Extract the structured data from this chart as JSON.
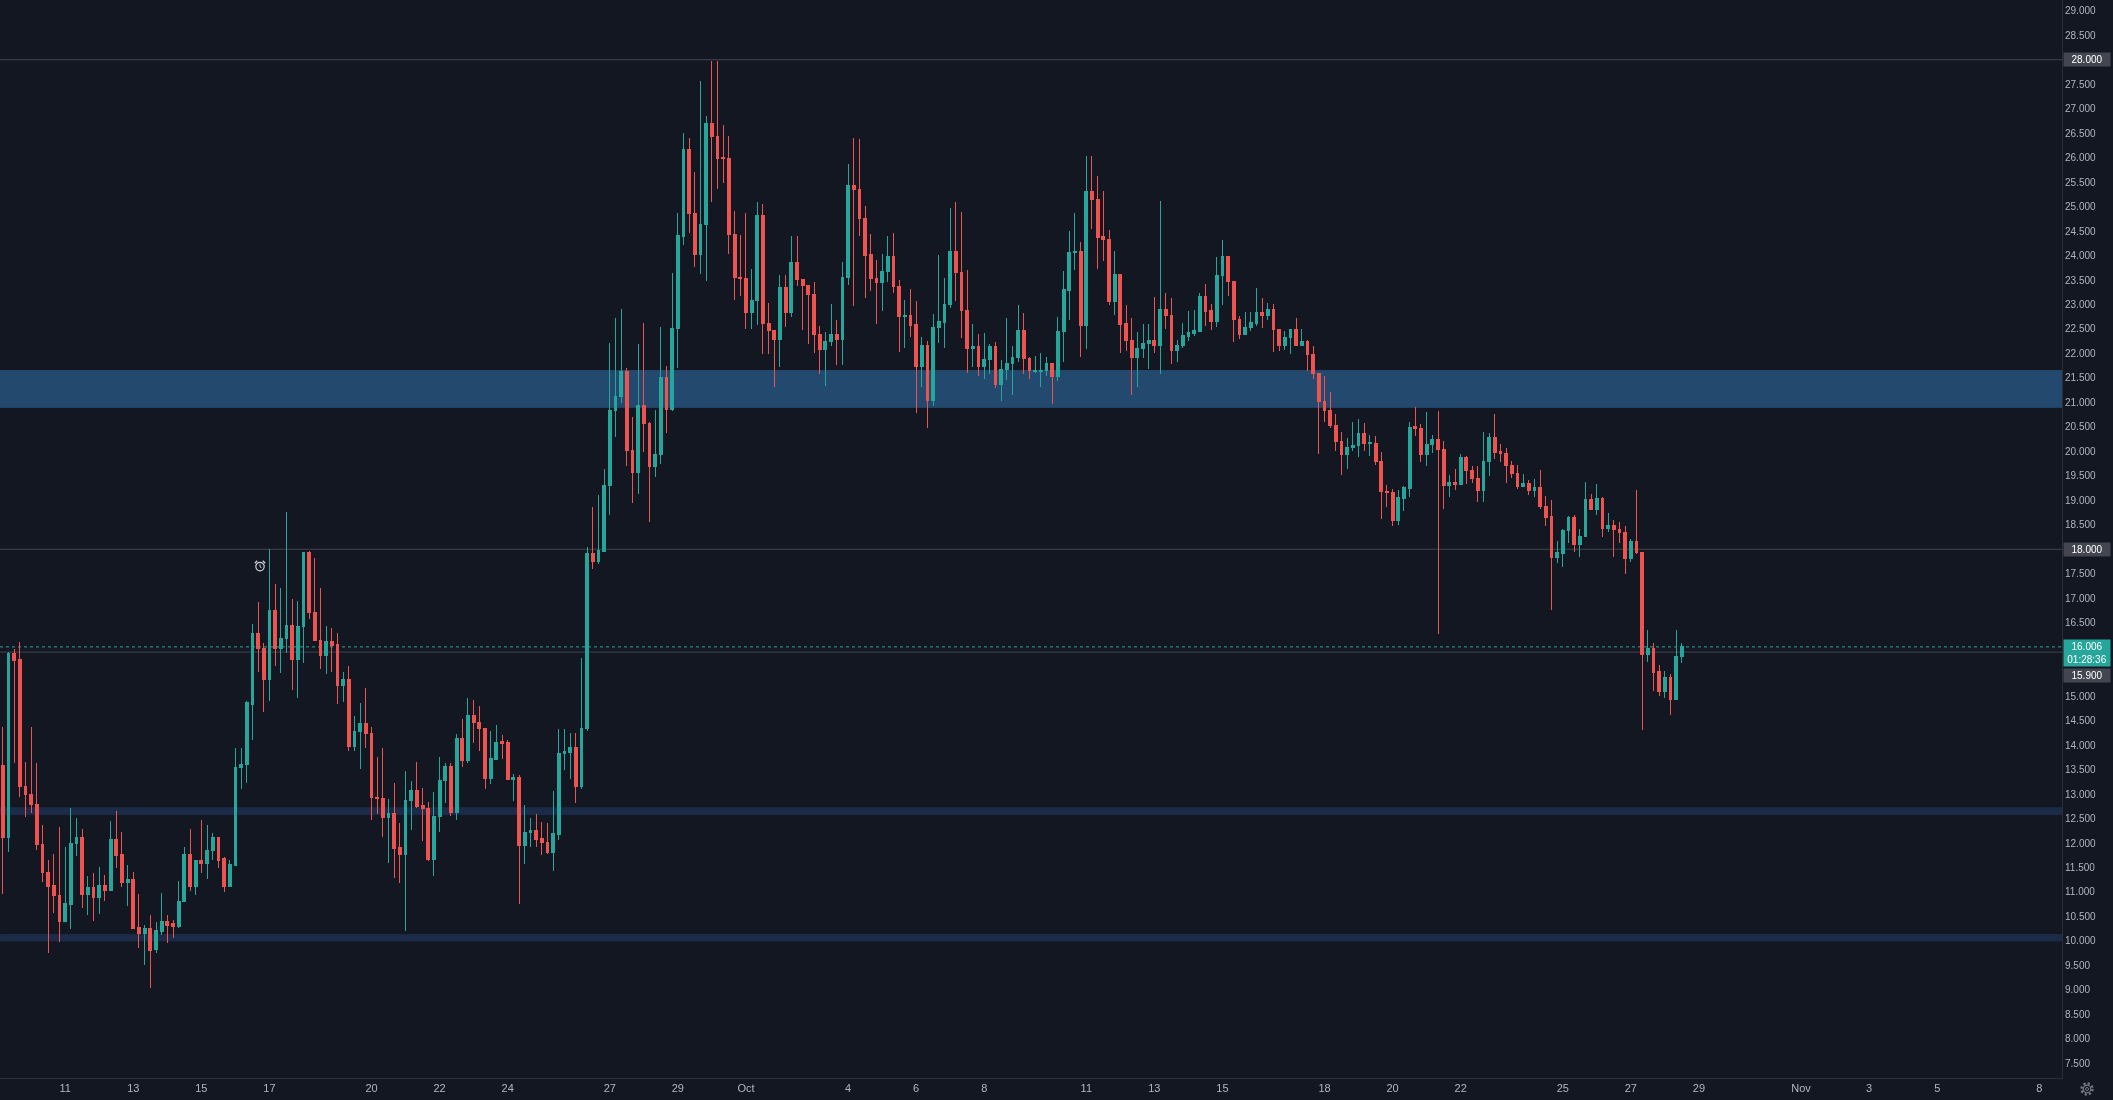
{
  "chart_data": {
    "type": "candlestick",
    "x": [
      "--09-09T04:00",
      "--09-09T08:00",
      "--09-09T12:00",
      "--09-09T16:00",
      "--09-09T20:00",
      "--09-10T00:00",
      "--09-10T04:00",
      "--09-10T08:00",
      "--09-10T12:00",
      "--09-10T16:00",
      "--09-10T20:00",
      "--09-11T00:00",
      "--09-11T04:00",
      "--09-11T08:00",
      "--09-11T12:00",
      "--09-11T16:00",
      "--09-11T20:00",
      "--09-12T00:00",
      "--09-12T04:00",
      "--09-12T08:00",
      "--09-12T12:00",
      "--09-12T16:00",
      "--09-12T20:00",
      "--09-13T00:00",
      "--09-13T04:00",
      "--09-13T08:00",
      "--09-13T12:00",
      "--09-13T16:00",
      "--09-13T20:00",
      "--09-14T00:00",
      "--09-14T04:00",
      "--09-14T08:00",
      "--09-14T12:00",
      "--09-14T16:00",
      "--09-14T20:00",
      "--09-15T00:00",
      "--09-15T04:00",
      "--09-15T08:00",
      "--09-15T12:00",
      "--09-15T16:00",
      "--09-15T20:00",
      "--09-16T00:00",
      "--09-16T04:00",
      "--09-16T08:00",
      "--09-16T12:00",
      "--09-16T16:00",
      "--09-16T20:00",
      "--09-17T00:00",
      "--09-17T04:00",
      "--09-17T08:00",
      "--09-17T12:00",
      "--09-17T16:00",
      "--09-17T20:00",
      "--09-18T00:00",
      "--09-18T04:00",
      "--09-18T08:00",
      "--09-18T12:00",
      "--09-18T16:00",
      "--09-18T20:00",
      "--09-19T00:00",
      "--09-19T04:00",
      "--09-19T08:00",
      "--09-19T12:00",
      "--09-19T16:00",
      "--09-19T20:00",
      "--09-20T00:00",
      "--09-20T04:00",
      "--09-20T08:00",
      "--09-20T12:00",
      "--09-20T16:00",
      "--09-20T20:00",
      "--09-21T00:00",
      "--09-21T04:00",
      "--09-21T08:00",
      "--09-21T12:00",
      "--09-21T16:00",
      "--09-21T20:00",
      "--09-22T00:00",
      "--09-22T04:00",
      "--09-22T08:00",
      "--09-22T12:00",
      "--09-22T16:00",
      "--09-22T20:00",
      "--09-23T00:00",
      "--09-23T04:00",
      "--09-23T08:00",
      "--09-23T12:00",
      "--09-23T16:00",
      "--09-23T20:00",
      "--09-24T00:00",
      "--09-24T04:00",
      "--09-24T08:00",
      "--09-24T12:00",
      "--09-24T16:00",
      "--09-24T20:00",
      "--09-25T00:00",
      "--09-25T04:00",
      "--09-25T08:00",
      "--09-25T12:00",
      "--09-25T16:00",
      "--09-25T20:00",
      "--09-26T00:00",
      "--09-26T04:00",
      "--09-26T08:00",
      "--09-26T12:00",
      "--09-26T16:00",
      "--09-26T20:00",
      "--09-27T00:00",
      "--09-27T04:00",
      "--09-27T08:00",
      "--09-27T12:00",
      "--09-27T16:00",
      "--09-27T20:00",
      "--09-28T00:00",
      "--09-28T04:00",
      "--09-28T08:00",
      "--09-28T12:00",
      "--09-28T16:00",
      "--09-28T20:00",
      "--09-29T00:00",
      "--09-29T04:00",
      "--09-29T08:00",
      "--09-29T12:00",
      "--09-29T16:00",
      "--09-29T20:00",
      "--09-30T00:00",
      "--09-30T04:00",
      "--09-30T08:00",
      "--09-30T12:00",
      "--09-30T16:00",
      "--09-30T20:00",
      "--10-01T00:00",
      "--10-01T04:00",
      "--10-01T08:00",
      "--10-01T12:00",
      "--10-01T16:00",
      "--10-01T20:00",
      "--10-02T00:00",
      "--10-02T04:00",
      "--10-02T08:00",
      "--10-02T12:00",
      "--10-02T16:00",
      "--10-02T20:00",
      "--10-03T00:00",
      "--10-03T04:00",
      "--10-03T08:00",
      "--10-03T12:00",
      "--10-03T16:00",
      "--10-03T20:00",
      "--10-04T00:00",
      "--10-04T04:00",
      "--10-04T08:00",
      "--10-04T12:00",
      "--10-04T16:00",
      "--10-04T20:00",
      "--10-05T00:00",
      "--10-05T04:00",
      "--10-05T08:00",
      "--10-05T12:00",
      "--10-05T16:00",
      "--10-05T20:00",
      "--10-06T00:00",
      "--10-06T04:00",
      "--10-06T08:00",
      "--10-06T12:00",
      "--10-06T16:00",
      "--10-06T20:00",
      "--10-07T00:00",
      "--10-07T04:00",
      "--10-07T08:00",
      "--10-07T12:00",
      "--10-07T16:00",
      "--10-07T20:00",
      "--10-08T00:00",
      "--10-08T04:00",
      "--10-08T08:00",
      "--10-08T12:00",
      "--10-08T16:00",
      "--10-08T20:00",
      "--10-09T00:00",
      "--10-09T04:00",
      "--10-09T08:00",
      "--10-09T12:00",
      "--10-09T16:00",
      "--10-09T20:00",
      "--10-10T00:00",
      "--10-10T04:00",
      "--10-10T08:00",
      "--10-10T12:00",
      "--10-10T16:00",
      "--10-10T20:00",
      "--10-11T00:00",
      "--10-11T04:00",
      "--10-11T08:00",
      "--10-11T12:00",
      "--10-11T16:00",
      "--10-11T20:00",
      "--10-12T00:00",
      "--10-12T04:00",
      "--10-12T08:00",
      "--10-12T12:00",
      "--10-12T16:00",
      "--10-12T20:00",
      "--10-13T00:00",
      "--10-13T04:00",
      "--10-13T08:00",
      "--10-13T12:00",
      "--10-13T16:00",
      "--10-13T20:00",
      "--10-14T00:00",
      "--10-14T04:00",
      "--10-14T08:00",
      "--10-14T12:00",
      "--10-14T16:00",
      "--10-14T20:00",
      "--10-15T00:00",
      "--10-15T04:00",
      "--10-15T08:00",
      "--10-15T12:00",
      "--10-15T16:00",
      "--10-15T20:00",
      "--10-16T00:00",
      "--10-16T04:00",
      "--10-16T08:00",
      "--10-16T12:00",
      "--10-16T16:00",
      "--10-16T20:00",
      "--10-17T00:00",
      "--10-17T04:00",
      "--10-17T08:00",
      "--10-17T12:00",
      "--10-17T16:00",
      "--10-17T20:00",
      "--10-18T00:00",
      "--10-18T04:00",
      "--10-18T08:00",
      "--10-18T12:00",
      "--10-18T16:00",
      "--10-18T20:00",
      "--10-19T00:00",
      "--10-19T04:00",
      "--10-19T08:00",
      "--10-19T12:00",
      "--10-19T16:00",
      "--10-19T20:00",
      "--10-20T00:00",
      "--10-20T04:00",
      "--10-20T08:00",
      "--10-20T12:00",
      "--10-20T16:00",
      "--10-20T20:00",
      "--10-21T00:00",
      "--10-21T04:00",
      "--10-21T08:00",
      "--10-21T12:00",
      "--10-21T16:00",
      "--10-21T20:00",
      "--10-22T00:00",
      "--10-22T04:00",
      "--10-22T08:00",
      "--10-22T12:00",
      "--10-22T16:00",
      "--10-22T20:00",
      "--10-23T00:00",
      "--10-23T04:00",
      "--10-23T08:00",
      "--10-23T12:00",
      "--10-23T16:00",
      "--10-23T20:00",
      "--10-24T00:00",
      "--10-24T04:00",
      "--10-24T08:00",
      "--10-24T12:00",
      "--10-24T16:00",
      "--10-24T20:00",
      "--10-25T00:00",
      "--10-25T04:00",
      "--10-25T08:00",
      "--10-25T12:00",
      "--10-25T16:00",
      "--10-25T20:00",
      "--10-26T00:00",
      "--10-26T04:00",
      "--10-26T08:00",
      "--10-26T12:00",
      "--10-26T16:00",
      "--10-26T20:00",
      "--10-27T00:00",
      "--10-27T04:00",
      "--10-27T08:00",
      "--10-27T12:00",
      "--10-27T16:00",
      "--10-27T20:00",
      "--10-28T00:00",
      "--10-28T04:00",
      "--10-28T08:00",
      "--10-28T12:00"
    ],
    "ohlc": [
      [
        13.58,
        14.38,
        10.95,
        12.11
      ],
      [
        12.11,
        15.9,
        11.81,
        15.87
      ],
      [
        15.87,
        15.96,
        13.63,
        15.72
      ],
      [
        15.74,
        16.1,
        12.95,
        13.15
      ],
      [
        13.15,
        13.65,
        12.54,
        12.99
      ],
      [
        12.99,
        14.38,
        12.62,
        12.79
      ],
      [
        12.79,
        13.63,
        11.86,
        11.96
      ],
      [
        11.97,
        12.36,
        11.21,
        11.39
      ],
      [
        11.39,
        11.65,
        9.76,
        11.12
      ],
      [
        11.13,
        11.77,
        10.58,
        10.92
      ],
      [
        10.92,
        12.32,
        9.98,
        10.39
      ],
      [
        10.39,
        11.92,
        10.39,
        10.77
      ],
      [
        10.75,
        12.71,
        10.25,
        11.99
      ],
      [
        11.98,
        12.51,
        11.73,
        12.12
      ],
      [
        12.12,
        12.29,
        10.68,
        10.95
      ],
      [
        10.95,
        11.32,
        10.53,
        11.09
      ],
      [
        11.09,
        11.38,
        10.41,
        10.88
      ],
      [
        10.88,
        11.5,
        10.56,
        11.13
      ],
      [
        11.13,
        11.34,
        10.82,
        11.04
      ],
      [
        11.04,
        12.45,
        11.04,
        12.07
      ],
      [
        12.07,
        12.65,
        11.49,
        11.75
      ],
      [
        11.77,
        12.22,
        11.11,
        11.19
      ],
      [
        11.19,
        11.55,
        10.72,
        11.26
      ],
      [
        11.26,
        11.41,
        10.26,
        10.26
      ],
      [
        10.28,
        10.95,
        9.86,
        10.15
      ],
      [
        10.15,
        10.32,
        9.51,
        10.26
      ],
      [
        10.26,
        10.53,
        9.03,
        9.81
      ],
      [
        9.83,
        10.39,
        9.75,
        10.22
      ],
      [
        10.2,
        10.97,
        10.12,
        10.4
      ],
      [
        10.4,
        10.53,
        9.96,
        10.32
      ],
      [
        10.36,
        10.43,
        10.07,
        10.29
      ],
      [
        10.3,
        11.22,
        10.26,
        10.81
      ],
      [
        10.8,
        11.92,
        10.8,
        11.77
      ],
      [
        11.77,
        12.28,
        11.02,
        11.12
      ],
      [
        11.12,
        11.65,
        10.94,
        11.65
      ],
      [
        11.65,
        12.47,
        11.39,
        11.58
      ],
      [
        11.58,
        12.37,
        11.26,
        11.84
      ],
      [
        11.84,
        12.2,
        11.65,
        12.12
      ],
      [
        12.11,
        12.12,
        11.49,
        11.65
      ],
      [
        11.68,
        11.72,
        11.0,
        11.12
      ],
      [
        11.12,
        11.65,
        11.11,
        11.57
      ],
      [
        11.55,
        13.95,
        11.55,
        13.54
      ],
      [
        13.54,
        13.95,
        13.1,
        13.61
      ],
      [
        13.6,
        14.91,
        13.23,
        14.88
      ],
      [
        14.83,
        16.47,
        14.1,
        16.27
      ],
      [
        16.27,
        16.93,
        15.5,
        15.98
      ],
      [
        15.98,
        16.08,
        14.68,
        15.33
      ],
      [
        15.33,
        18.0,
        14.9,
        16.75
      ],
      [
        16.75,
        17.3,
        15.61,
        15.98
      ],
      [
        15.98,
        17.2,
        15.48,
        16.17
      ],
      [
        16.17,
        18.76,
        15.89,
        16.45
      ],
      [
        16.45,
        16.98,
        15.12,
        15.75
      ],
      [
        15.75,
        16.94,
        14.97,
        16.43
      ],
      [
        16.43,
        17.95,
        15.68,
        17.93
      ],
      [
        17.93,
        17.97,
        16.58,
        16.71
      ],
      [
        16.71,
        17.83,
        16.13,
        16.13
      ],
      [
        16.13,
        17.2,
        15.55,
        15.84
      ],
      [
        15.84,
        16.44,
        15.46,
        16.12
      ],
      [
        16.12,
        16.4,
        15.5,
        16.04
      ],
      [
        16.05,
        16.3,
        14.83,
        15.21
      ],
      [
        15.21,
        15.49,
        14.89,
        15.34
      ],
      [
        15.34,
        15.61,
        13.88,
        13.98
      ],
      [
        13.98,
        14.59,
        13.88,
        14.27
      ],
      [
        14.27,
        14.87,
        13.51,
        14.45
      ],
      [
        14.45,
        15.16,
        13.95,
        14.23
      ],
      [
        14.23,
        14.36,
        12.48,
        12.92
      ],
      [
        12.94,
        13.75,
        12.6,
        12.9
      ],
      [
        12.9,
        13.95,
        12.13,
        12.52
      ],
      [
        12.52,
        12.89,
        11.6,
        12.6
      ],
      [
        12.6,
        13.23,
        11.29,
        11.89
      ],
      [
        11.9,
        12.41,
        11.19,
        11.77
      ],
      [
        11.77,
        13.47,
        10.21,
        12.86
      ],
      [
        12.86,
        13.27,
        12.26,
        13.08
      ],
      [
        13.08,
        13.66,
        12.71,
        12.75
      ],
      [
        12.76,
        13.12,
        12.05,
        12.7
      ],
      [
        12.71,
        12.84,
        11.64,
        11.67
      ],
      [
        11.67,
        13.05,
        11.32,
        12.55
      ],
      [
        12.54,
        13.76,
        12.23,
        13.27
      ],
      [
        13.27,
        13.64,
        12.82,
        13.56
      ],
      [
        13.56,
        13.64,
        12.55,
        12.63
      ],
      [
        12.63,
        14.23,
        12.48,
        14.14
      ],
      [
        14.14,
        14.53,
        13.56,
        13.69
      ],
      [
        13.69,
        14.97,
        13.64,
        14.61
      ],
      [
        14.61,
        14.92,
        14.05,
        14.46
      ],
      [
        14.47,
        14.8,
        13.88,
        14.33
      ],
      [
        14.34,
        14.34,
        13.1,
        13.31
      ],
      [
        13.31,
        14.29,
        13.2,
        13.72
      ],
      [
        13.71,
        14.42,
        13.71,
        14.06
      ],
      [
        14.07,
        14.2,
        13.71,
        14.03
      ],
      [
        14.06,
        14.1,
        13.3,
        13.3
      ],
      [
        13.29,
        13.41,
        12.86,
        13.34
      ],
      [
        13.34,
        13.39,
        10.75,
        11.94
      ],
      [
        11.94,
        12.77,
        11.58,
        12.22
      ],
      [
        12.22,
        12.52,
        11.92,
        12.26
      ],
      [
        12.26,
        12.6,
        11.91,
        12.08
      ],
      [
        12.09,
        12.42,
        11.75,
        12.01
      ],
      [
        12.02,
        12.4,
        11.77,
        11.81
      ],
      [
        11.81,
        13.07,
        11.43,
        12.2
      ],
      [
        12.18,
        14.32,
        12.07,
        13.83
      ],
      [
        13.83,
        14.32,
        13.5,
        13.86
      ],
      [
        13.85,
        14.24,
        13.3,
        13.95
      ],
      [
        13.95,
        14.24,
        12.81,
        13.16
      ],
      [
        13.16,
        15.77,
        13.11,
        14.34
      ],
      [
        14.34,
        18.04,
        14.29,
        17.92
      ],
      [
        17.92,
        18.87,
        17.6,
        17.75
      ],
      [
        17.75,
        19.11,
        17.7,
        17.97
      ],
      [
        17.95,
        19.65,
        17.95,
        19.31
      ],
      [
        19.3,
        22.22,
        18.7,
        20.84
      ],
      [
        20.84,
        22.72,
        20.3,
        21.13
      ],
      [
        21.12,
        22.9,
        20.98,
        21.63
      ],
      [
        21.63,
        21.7,
        19.7,
        20.01
      ],
      [
        20.01,
        20.71,
        18.95,
        19.57
      ],
      [
        19.57,
        22.2,
        19.13,
        20.93
      ],
      [
        20.93,
        22.63,
        19.99,
        20.57
      ],
      [
        20.57,
        20.59,
        18.56,
        19.7
      ],
      [
        19.7,
        20.84,
        19.47,
        19.94
      ],
      [
        19.94,
        22.55,
        19.75,
        21.51
      ],
      [
        21.51,
        21.74,
        20.38,
        20.86
      ],
      [
        20.86,
        23.64,
        20.83,
        22.51
      ],
      [
        22.5,
        24.86,
        21.7,
        24.4
      ],
      [
        24.38,
        26.5,
        24.21,
        26.16
      ],
      [
        26.16,
        26.41,
        24.47,
        24.85
      ],
      [
        24.85,
        25.71,
        23.76,
        24.03
      ],
      [
        24.03,
        27.57,
        23.62,
        24.64
      ],
      [
        24.64,
        26.85,
        23.48,
        26.7
      ],
      [
        26.7,
        27.98,
        25.1,
        26.43
      ],
      [
        26.43,
        27.98,
        25.35,
        25.99
      ],
      [
        26.0,
        26.67,
        25.49,
        25.98
      ],
      [
        25.99,
        26.45,
        24.04,
        24.44
      ],
      [
        24.44,
        24.92,
        23.09,
        23.55
      ],
      [
        23.55,
        24.41,
        23.17,
        23.53
      ],
      [
        23.53,
        24.86,
        22.49,
        22.83
      ],
      [
        22.83,
        23.72,
        22.5,
        23.09
      ],
      [
        23.09,
        25.09,
        22.58,
        24.81
      ],
      [
        24.81,
        25.05,
        21.98,
        22.61
      ],
      [
        22.61,
        23.04,
        21.98,
        22.46
      ],
      [
        22.47,
        22.48,
        21.31,
        22.29
      ],
      [
        22.29,
        23.6,
        21.73,
        23.35
      ],
      [
        23.35,
        23.6,
        22.55,
        22.83
      ],
      [
        22.83,
        24.39,
        22.74,
        23.86
      ],
      [
        23.86,
        24.39,
        23.38,
        23.51
      ],
      [
        23.51,
        23.51,
        22.47,
        23.38
      ],
      [
        23.38,
        23.4,
        22.2,
        23.21
      ],
      [
        23.21,
        23.45,
        22.0,
        22.38
      ],
      [
        22.38,
        22.56,
        21.59,
        22.09
      ],
      [
        22.09,
        22.43,
        21.34,
        22.24
      ],
      [
        22.24,
        23.02,
        22.15,
        22.38
      ],
      [
        22.38,
        22.68,
        21.76,
        22.29
      ],
      [
        22.29,
        23.87,
        21.77,
        23.55
      ],
      [
        23.55,
        25.88,
        23.4,
        25.43
      ],
      [
        25.43,
        26.41,
        22.97,
        25.35
      ],
      [
        25.35,
        26.38,
        24.39,
        24.75
      ],
      [
        24.75,
        25.02,
        23.14,
        24.01
      ],
      [
        24.03,
        24.45,
        23.28,
        23.53
      ],
      [
        23.53,
        23.9,
        22.6,
        23.45
      ],
      [
        23.45,
        24.04,
        22.87,
        23.67
      ],
      [
        23.67,
        24.4,
        23.45,
        23.98
      ],
      [
        23.98,
        24.47,
        23.24,
        23.37
      ],
      [
        23.37,
        23.5,
        22.04,
        22.75
      ],
      [
        22.75,
        23.09,
        22.12,
        22.78
      ],
      [
        22.78,
        23.31,
        22.34,
        22.58
      ],
      [
        22.6,
        23.08,
        20.79,
        21.74
      ],
      [
        21.74,
        22.33,
        21.31,
        22.17
      ],
      [
        22.17,
        22.26,
        20.47,
        21.04
      ],
      [
        21.04,
        22.8,
        20.93,
        22.53
      ],
      [
        22.53,
        24.01,
        22.22,
        22.65
      ],
      [
        22.64,
        23.55,
        22.12,
        23.0
      ],
      [
        23.0,
        24.98,
        22.92,
        24.09
      ],
      [
        24.09,
        25.1,
        23.08,
        23.66
      ],
      [
        23.66,
        24.88,
        22.32,
        22.87
      ],
      [
        22.87,
        23.7,
        21.61,
        22.11
      ],
      [
        22.11,
        22.61,
        21.72,
        22.15
      ],
      [
        22.15,
        22.39,
        21.54,
        21.73
      ],
      [
        21.73,
        22.41,
        21.47,
        21.87
      ],
      [
        21.87,
        22.19,
        21.59,
        22.14
      ],
      [
        22.14,
        22.24,
        21.29,
        21.36
      ],
      [
        21.36,
        21.87,
        21.03,
        21.68
      ],
      [
        21.68,
        22.73,
        21.46,
        21.8
      ],
      [
        21.8,
        22.16,
        21.15,
        21.92
      ],
      [
        21.92,
        22.98,
        21.83,
        22.46
      ],
      [
        22.46,
        22.83,
        21.59,
        21.89
      ],
      [
        21.9,
        21.93,
        21.47,
        21.65
      ],
      [
        21.64,
        21.95,
        21.61,
        21.66
      ],
      [
        21.64,
        22.0,
        21.31,
        21.66
      ],
      [
        21.65,
        21.92,
        21.53,
        21.8
      ],
      [
        21.8,
        21.8,
        20.97,
        21.53
      ],
      [
        21.53,
        22.75,
        21.44,
        22.44
      ],
      [
        22.44,
        23.69,
        21.82,
        23.3
      ],
      [
        23.28,
        24.5,
        22.68,
        24.06
      ],
      [
        24.06,
        24.86,
        23.7,
        24.09
      ],
      [
        24.09,
        24.28,
        21.93,
        22.57
      ],
      [
        22.57,
        26.03,
        22.09,
        25.31
      ],
      [
        25.31,
        26.03,
        24.54,
        25.15
      ],
      [
        25.15,
        25.63,
        23.73,
        24.37
      ],
      [
        24.38,
        25.32,
        23.88,
        24.33
      ],
      [
        24.33,
        24.52,
        22.98,
        23.06
      ],
      [
        23.06,
        24.09,
        22.79,
        23.62
      ],
      [
        23.62,
        23.62,
        22.0,
        22.6
      ],
      [
        22.61,
        23.0,
        22.06,
        22.26
      ],
      [
        22.27,
        22.73,
        21.16,
        21.92
      ],
      [
        21.92,
        22.43,
        21.32,
        22.1
      ],
      [
        22.1,
        22.6,
        21.9,
        22.21
      ],
      [
        22.2,
        22.6,
        21.68,
        22.27
      ],
      [
        22.27,
        23.15,
        22.0,
        22.17
      ],
      [
        22.17,
        25.11,
        21.59,
        22.9
      ],
      [
        22.9,
        23.23,
        22.5,
        22.77
      ],
      [
        22.78,
        23.13,
        21.78,
        22.07
      ],
      [
        22.07,
        22.27,
        21.82,
        22.17
      ],
      [
        22.16,
        22.63,
        22.12,
        22.36
      ],
      [
        22.35,
        22.87,
        22.26,
        22.43
      ],
      [
        22.41,
        22.89,
        22.36,
        22.46
      ],
      [
        22.44,
        23.23,
        22.44,
        23.17
      ],
      [
        23.17,
        23.42,
        22.56,
        22.85
      ],
      [
        22.87,
        23.02,
        22.48,
        22.66
      ],
      [
        22.66,
        23.98,
        22.55,
        23.6
      ],
      [
        23.6,
        24.32,
        22.99,
        23.98
      ],
      [
        23.98,
        23.99,
        23.17,
        23.47
      ],
      [
        23.47,
        23.47,
        22.23,
        22.7
      ],
      [
        22.7,
        22.76,
        22.29,
        22.38
      ],
      [
        22.38,
        22.85,
        22.38,
        22.53
      ],
      [
        22.53,
        22.85,
        22.46,
        22.63
      ],
      [
        22.61,
        23.33,
        22.57,
        22.84
      ],
      [
        22.84,
        23.13,
        22.53,
        22.78
      ],
      [
        22.78,
        23.04,
        22.68,
        22.9
      ],
      [
        22.9,
        23.01,
        22.02,
        22.48
      ],
      [
        22.49,
        22.49,
        22.05,
        22.17
      ],
      [
        22.17,
        22.46,
        22.07,
        22.33
      ],
      [
        22.33,
        22.49,
        21.98,
        22.49
      ],
      [
        22.49,
        22.72,
        22.17,
        22.17
      ],
      [
        22.17,
        22.49,
        22.17,
        22.24
      ],
      [
        22.24,
        22.27,
        21.64,
        21.97
      ],
      [
        21.98,
        22.15,
        21.48,
        21.59
      ],
      [
        21.59,
        21.59,
        19.95,
        21.01
      ],
      [
        21.01,
        21.53,
        20.61,
        20.83
      ],
      [
        20.84,
        21.21,
        20.47,
        20.52
      ],
      [
        20.53,
        20.76,
        20.0,
        20.2
      ],
      [
        20.2,
        20.39,
        19.52,
        19.94
      ],
      [
        19.94,
        20.27,
        19.65,
        20.08
      ],
      [
        20.08,
        20.59,
        20.0,
        20.11
      ],
      [
        20.11,
        20.67,
        19.89,
        20.37
      ],
      [
        20.37,
        20.57,
        20.01,
        20.16
      ],
      [
        20.16,
        20.33,
        19.91,
        20.18
      ],
      [
        20.16,
        20.31,
        19.72,
        19.79
      ],
      [
        19.8,
        19.98,
        18.61,
        19.18
      ],
      [
        19.19,
        19.31,
        18.87,
        19.16
      ],
      [
        19.16,
        19.24,
        18.48,
        18.58
      ],
      [
        18.58,
        19.21,
        18.49,
        19.05
      ],
      [
        19.04,
        19.3,
        18.78,
        19.26
      ],
      [
        19.24,
        20.59,
        19.07,
        20.49
      ],
      [
        20.5,
        20.91,
        20.31,
        20.47
      ],
      [
        20.47,
        20.55,
        19.79,
        19.94
      ],
      [
        19.94,
        20.81,
        19.7,
        20.15
      ],
      [
        20.15,
        20.33,
        19.97,
        20.25
      ],
      [
        20.25,
        20.82,
        16.27,
        20.04
      ],
      [
        20.04,
        20.21,
        18.82,
        19.31
      ],
      [
        19.31,
        19.52,
        19.07,
        19.36
      ],
      [
        19.36,
        19.63,
        19.22,
        19.33
      ],
      [
        19.33,
        19.95,
        19.31,
        19.88
      ],
      [
        19.88,
        19.91,
        19.33,
        19.61
      ],
      [
        19.61,
        19.7,
        19.36,
        19.45
      ],
      [
        19.45,
        19.71,
        18.96,
        19.21
      ],
      [
        19.21,
        20.39,
        18.96,
        19.79
      ],
      [
        19.79,
        20.37,
        19.5,
        20.29
      ],
      [
        20.29,
        20.76,
        19.84,
        19.97
      ],
      [
        19.99,
        20.15,
        19.79,
        19.95
      ],
      [
        19.96,
        20.06,
        19.36,
        19.71
      ],
      [
        19.72,
        19.81,
        19.46,
        19.55
      ],
      [
        19.55,
        19.72,
        19.24,
        19.29
      ],
      [
        19.29,
        19.54,
        19.27,
        19.35
      ],
      [
        19.35,
        19.41,
        19.11,
        19.21
      ],
      [
        19.21,
        19.43,
        19.06,
        19.27
      ],
      [
        19.27,
        19.61,
        18.82,
        18.87
      ],
      [
        18.88,
        19.09,
        18.47,
        18.65
      ],
      [
        18.67,
        19.01,
        16.77,
        17.83
      ],
      [
        17.83,
        18.17,
        17.71,
        17.93
      ],
      [
        17.92,
        18.41,
        17.63,
        18.38
      ],
      [
        18.38,
        18.67,
        18.13,
        18.65
      ],
      [
        18.65,
        18.7,
        17.95,
        18.1
      ],
      [
        18.1,
        18.41,
        17.85,
        18.27
      ],
      [
        18.26,
        19.38,
        18.26,
        19.01
      ],
      [
        19.01,
        19.13,
        18.82,
        18.82
      ],
      [
        18.82,
        19.33,
        18.7,
        19.04
      ],
      [
        19.04,
        19.06,
        18.26,
        18.42
      ],
      [
        18.42,
        18.75,
        18.36,
        18.48
      ],
      [
        18.48,
        18.6,
        17.85,
        18.41
      ],
      [
        18.41,
        18.56,
        18.13,
        18.34
      ],
      [
        18.35,
        18.48,
        17.49,
        17.81
      ],
      [
        17.81,
        18.22,
        17.75,
        18.16
      ],
      [
        18.16,
        19.22,
        17.9,
        17.94
      ],
      [
        17.94,
        17.94,
        14.31,
        15.86
      ],
      [
        15.86,
        16.35,
        15.7,
        15.98
      ],
      [
        15.98,
        16.08,
        15.11,
        15.49
      ],
      [
        15.5,
        15.63,
        15.0,
        15.1
      ],
      [
        15.1,
        15.52,
        14.97,
        15.38
      ],
      [
        15.38,
        15.45,
        14.61,
        14.93
      ],
      [
        14.93,
        16.35,
        14.93,
        15.82
      ],
      [
        15.82,
        16.09,
        15.68,
        16.006
      ]
    ],
    "colors": [
      "#ef5350",
      "#26a69a",
      "#ef5350",
      "#ef5350",
      "#ef5350",
      "#ef5350",
      "#ef5350",
      "#ef5350",
      "#ef5350",
      "#ef5350",
      "#ef5350",
      "#26a69a",
      "#26a69a",
      "#26a69a",
      "#ef5350",
      "#26a69a",
      "#ef5350",
      "#26a69a",
      "#ef5350",
      "#26a69a",
      "#ef5350",
      "#ef5350",
      "#26a69a",
      "#ef5350",
      "#ef5350",
      "#26a69a",
      "#ef5350",
      "#26a69a",
      "#26a69a",
      "#ef5350",
      "#ef5350",
      "#26a69a",
      "#26a69a",
      "#ef5350",
      "#26a69a",
      "#ef5350",
      "#26a69a",
      "#26a69a",
      "#ef5350",
      "#ef5350",
      "#26a69a",
      "#26a69a",
      "#26a69a",
      "#26a69a",
      "#26a69a",
      "#ef5350",
      "#ef5350",
      "#26a69a",
      "#ef5350",
      "#26a69a",
      "#26a69a",
      "#ef5350",
      "#26a69a",
      "#26a69a",
      "#ef5350",
      "#ef5350",
      "#ef5350",
      "#26a69a",
      "#ef5350",
      "#ef5350",
      "#26a69a",
      "#ef5350",
      "#26a69a",
      "#26a69a",
      "#ef5350",
      "#ef5350",
      "#ef5350",
      "#ef5350",
      "#26a69a",
      "#ef5350",
      "#ef5350",
      "#26a69a",
      "#26a69a",
      "#ef5350",
      "#ef5350",
      "#ef5350",
      "#26a69a",
      "#26a69a",
      "#26a69a",
      "#ef5350",
      "#26a69a",
      "#ef5350",
      "#26a69a",
      "#ef5350",
      "#ef5350",
      "#ef5350",
      "#26a69a",
      "#26a69a",
      "#ef5350",
      "#ef5350",
      "#26a69a",
      "#ef5350",
      "#26a69a",
      "#26a69a",
      "#ef5350",
      "#ef5350",
      "#ef5350",
      "#26a69a",
      "#26a69a",
      "#26a69a",
      "#26a69a",
      "#ef5350",
      "#26a69a",
      "#26a69a",
      "#ef5350",
      "#26a69a",
      "#26a69a",
      "#26a69a",
      "#26a69a",
      "#26a69a",
      "#ef5350",
      "#ef5350",
      "#26a69a",
      "#ef5350",
      "#ef5350",
      "#26a69a",
      "#26a69a",
      "#ef5350",
      "#26a69a",
      "#26a69a",
      "#26a69a",
      "#ef5350",
      "#ef5350",
      "#26a69a",
      "#26a69a",
      "#ef5350",
      "#ef5350",
      "#ef5350",
      "#ef5350",
      "#ef5350",
      "#ef5350",
      "#ef5350",
      "#26a69a",
      "#26a69a",
      "#ef5350",
      "#ef5350",
      "#ef5350",
      "#26a69a",
      "#ef5350",
      "#26a69a",
      "#ef5350",
      "#ef5350",
      "#ef5350",
      "#ef5350",
      "#ef5350",
      "#26a69a",
      "#26a69a",
      "#ef5350",
      "#26a69a",
      "#26a69a",
      "#ef5350",
      "#ef5350",
      "#ef5350",
      "#ef5350",
      "#ef5350",
      "#26a69a",
      "#26a69a",
      "#ef5350",
      "#ef5350",
      "#26a69a",
      "#ef5350",
      "#ef5350",
      "#26a69a",
      "#ef5350",
      "#26a69a",
      "#26a69a",
      "#26a69a",
      "#26a69a",
      "#ef5350",
      "#ef5350",
      "#ef5350",
      "#26a69a",
      "#ef5350",
      "#26a69a",
      "#26a69a",
      "#ef5350",
      "#26a69a",
      "#26a69a",
      "#26a69a",
      "#26a69a",
      "#ef5350",
      "#ef5350",
      "#26a69a",
      "#26a69a",
      "#26a69a",
      "#ef5350",
      "#26a69a",
      "#26a69a",
      "#26a69a",
      "#26a69a",
      "#ef5350",
      "#26a69a",
      "#ef5350",
      "#ef5350",
      "#ef5350",
      "#ef5350",
      "#26a69a",
      "#ef5350",
      "#ef5350",
      "#ef5350",
      "#26a69a",
      "#26a69a",
      "#26a69a",
      "#ef5350",
      "#26a69a",
      "#ef5350",
      "#ef5350",
      "#26a69a",
      "#26a69a",
      "#26a69a",
      "#26a69a",
      "#26a69a",
      "#ef5350",
      "#ef5350",
      "#26a69a",
      "#26a69a",
      "#ef5350",
      "#ef5350",
      "#ef5350",
      "#26a69a",
      "#26a69a",
      "#26a69a",
      "#ef5350",
      "#26a69a",
      "#ef5350",
      "#ef5350",
      "#26a69a",
      "#26a69a",
      "#ef5350",
      "#26a69a",
      "#ef5350",
      "#ef5350",
      "#ef5350",
      "#ef5350",
      "#ef5350",
      "#ef5350",
      "#ef5350",
      "#26a69a",
      "#26a69a",
      "#26a69a",
      "#ef5350",
      "#26a69a",
      "#ef5350",
      "#ef5350",
      "#ef5350",
      "#ef5350",
      "#26a69a",
      "#26a69a",
      "#26a69a",
      "#ef5350",
      "#ef5350",
      "#26a69a",
      "#26a69a",
      "#ef5350",
      "#ef5350",
      "#26a69a",
      "#ef5350",
      "#26a69a",
      "#ef5350",
      "#ef5350",
      "#ef5350",
      "#26a69a",
      "#26a69a",
      "#ef5350",
      "#ef5350",
      "#ef5350",
      "#ef5350",
      "#ef5350",
      "#26a69a",
      "#ef5350",
      "#26a69a",
      "#ef5350",
      "#ef5350",
      "#ef5350",
      "#26a69a",
      "#26a69a",
      "#26a69a",
      "#ef5350",
      "#26a69a",
      "#26a69a",
      "#ef5350",
      "#26a69a",
      "#ef5350",
      "#26a69a",
      "#ef5350",
      "#ef5350",
      "#ef5350",
      "#26a69a",
      "#ef5350",
      "#ef5350",
      "#26a69a",
      "#ef5350",
      "#ef5350",
      "#26a69a",
      "#ef5350",
      "#26a69a",
      "#26a69a"
    ],
    "xlim": [
      "--09-09T02:00",
      "--11-08T16:00"
    ],
    "xticks": [
      {
        "value": "--09-11",
        "label": "11"
      },
      {
        "value": "--09-13",
        "label": "13"
      },
      {
        "value": "--09-15",
        "label": "15"
      },
      {
        "value": "--09-17",
        "label": "17"
      },
      {
        "value": "--09-20",
        "label": "20"
      },
      {
        "value": "--09-22",
        "label": "22"
      },
      {
        "value": "--09-24",
        "label": "24"
      },
      {
        "value": "--09-27",
        "label": "27"
      },
      {
        "value": "--09-29",
        "label": "29"
      },
      {
        "value": "--10-01",
        "label": "Oct"
      },
      {
        "value": "--10-04",
        "label": "4"
      },
      {
        "value": "--10-06",
        "label": "6"
      },
      {
        "value": "--10-08",
        "label": "8"
      },
      {
        "value": "--10-11",
        "label": "11"
      },
      {
        "value": "--10-13",
        "label": "13"
      },
      {
        "value": "--10-15",
        "label": "15"
      },
      {
        "value": "--10-18",
        "label": "18"
      },
      {
        "value": "--10-20",
        "label": "20"
      },
      {
        "value": "--10-22",
        "label": "22"
      },
      {
        "value": "--10-25",
        "label": "25"
      },
      {
        "value": "--10-27",
        "label": "27"
      },
      {
        "value": "--10-29",
        "label": "29"
      },
      {
        "value": "--11-01",
        "label": "Nov"
      },
      {
        "value": "--11-03",
        "label": "3"
      },
      {
        "value": "--11-05",
        "label": "5"
      },
      {
        "value": "--11-08",
        "label": "8"
      }
    ],
    "ylim": [
      7.2,
      29.22
    ],
    "yticks": [
      {
        "value": 7.5,
        "label": "7.500"
      },
      {
        "value": 8,
        "label": "8.000"
      },
      {
        "value": 8.5,
        "label": "8.500"
      },
      {
        "value": 9,
        "label": "9.000"
      },
      {
        "value": 9.5,
        "label": "9.500"
      },
      {
        "value": 10,
        "label": "10.000"
      },
      {
        "value": 10.5,
        "label": "10.500"
      },
      {
        "value": 11,
        "label": "11.000"
      },
      {
        "value": 11.5,
        "label": "11.500"
      },
      {
        "value": 12,
        "label": "12.000"
      },
      {
        "value": 12.5,
        "label": "12.500"
      },
      {
        "value": 13,
        "label": "13.000"
      },
      {
        "value": 13.5,
        "label": "13.500"
      },
      {
        "value": 14,
        "label": "14.000"
      },
      {
        "value": 14.5,
        "label": "14.500"
      },
      {
        "value": 15,
        "label": "15.000"
      },
      {
        "value": 16.5,
        "label": "16.500"
      },
      {
        "value": 17,
        "label": "17.000"
      },
      {
        "value": 17.5,
        "label": "17.500"
      },
      {
        "value": 18.5,
        "label": "18.500"
      },
      {
        "value": 19,
        "label": "19.000"
      },
      {
        "value": 19.5,
        "label": "19.500"
      },
      {
        "value": 20,
        "label": "20.000"
      },
      {
        "value": 20.5,
        "label": "20.500"
      },
      {
        "value": 21,
        "label": "21.000"
      },
      {
        "value": 21.5,
        "label": "21.500"
      },
      {
        "value": 22,
        "label": "22.000"
      },
      {
        "value": 22.5,
        "label": "22.500"
      },
      {
        "value": 23,
        "label": "23.000"
      },
      {
        "value": 23.5,
        "label": "23.500"
      },
      {
        "value": 24,
        "label": "24.000"
      },
      {
        "value": 24.5,
        "label": "24.500"
      },
      {
        "value": 25,
        "label": "25.000"
      },
      {
        "value": 25.5,
        "label": "25.500"
      },
      {
        "value": 26,
        "label": "26.000"
      },
      {
        "value": 26.5,
        "label": "26.500"
      },
      {
        "value": 27,
        "label": "27.000"
      },
      {
        "value": 27.5,
        "label": "27.500"
      },
      {
        "value": 28.5,
        "label": "28.500"
      },
      {
        "value": 29,
        "label": "29.000"
      }
    ],
    "bands": [
      {
        "axis": "y",
        "from": 20.9,
        "to": 21.65,
        "color": "#24496f"
      },
      {
        "axis": "y",
        "from": 12.58,
        "to": 12.72,
        "color": "#1c2b47"
      },
      {
        "axis": "y",
        "from": 10.0,
        "to": 10.13,
        "color": "#1c2b47"
      }
    ],
    "ref_lines": [
      {
        "axis": "y",
        "value": 28,
        "label": "28.000",
        "color": "#434651"
      },
      {
        "axis": "y",
        "value": 18,
        "label": "18.000",
        "color": "#434651"
      },
      {
        "axis": "y",
        "value": 16.006,
        "label": "16.006\n01:28:36",
        "color": "#26a69a",
        "line_style": "dotted"
      },
      {
        "axis": "y",
        "value": 15.9,
        "label": "15.900",
        "color": "#434651"
      }
    ]
  }
}
